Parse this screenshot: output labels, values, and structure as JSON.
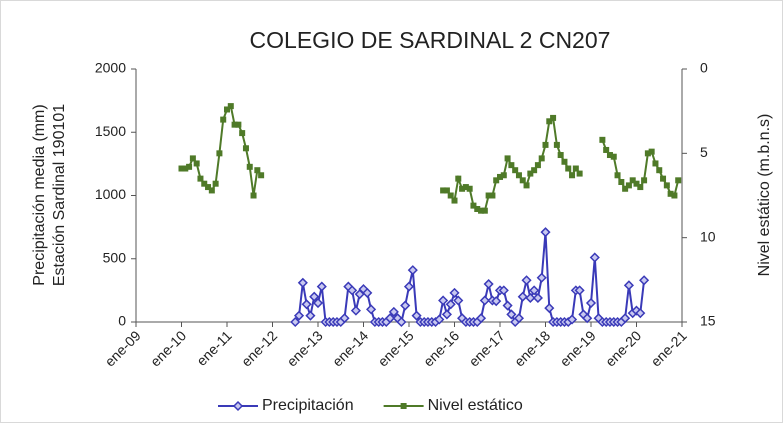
{
  "chart_data": {
    "type": "line",
    "title": "COLEGIO DE SARDINAL 2 CN207",
    "y_label": [
      "Precipitación media (mm)",
      "Estación Sardinal 190101"
    ],
    "y2_label": "Nivel estático (m.b.n.s)",
    "x": [
      "2010-01",
      "2010-02",
      "2010-03",
      "2010-04",
      "2010-05",
      "2010-06",
      "2010-07",
      "2010-08",
      "2010-09",
      "2010-10",
      "2010-11",
      "2010-12",
      "2011-01",
      "2011-02",
      "2011-03",
      "2011-04",
      "2011-05",
      "2011-06",
      "2011-07",
      "2011-08",
      "2011-09",
      "2011-10",
      "2011-11",
      "2011-12",
      "2012-01",
      "2012-02",
      "2012-03",
      "2012-04",
      "2012-05",
      "2012-06",
      "2012-07",
      "2012-08",
      "2012-09",
      "2012-10",
      "2012-11",
      "2012-12",
      "2013-01",
      "2013-02",
      "2013-03",
      "2013-04",
      "2013-05",
      "2013-06",
      "2013-07",
      "2013-08",
      "2013-09",
      "2013-10",
      "2013-11",
      "2013-12",
      "2014-01",
      "2014-02",
      "2014-03",
      "2014-04",
      "2014-05",
      "2014-06",
      "2014-07",
      "2014-08",
      "2014-09",
      "2014-10",
      "2014-11",
      "2014-12",
      "2015-01",
      "2015-02",
      "2015-03",
      "2015-04",
      "2015-05",
      "2015-06",
      "2015-07",
      "2015-08",
      "2015-09",
      "2015-10",
      "2015-11",
      "2015-12",
      "2016-01",
      "2016-02",
      "2016-03",
      "2016-04",
      "2016-05",
      "2016-06",
      "2016-07",
      "2016-08",
      "2016-09",
      "2016-10",
      "2016-11",
      "2016-12",
      "2017-01",
      "2017-02",
      "2017-03",
      "2017-04",
      "2017-05",
      "2017-06",
      "2017-07",
      "2017-08",
      "2017-09",
      "2017-10",
      "2017-11",
      "2017-12",
      "2018-01",
      "2018-02",
      "2018-03",
      "2018-04",
      "2018-05",
      "2018-06",
      "2018-07",
      "2018-08",
      "2018-09",
      "2018-10",
      "2018-11",
      "2018-12",
      "2019-01",
      "2019-02",
      "2019-03",
      "2019-04",
      "2019-05",
      "2019-06",
      "2019-07",
      "2019-08",
      "2019-09",
      "2019-10",
      "2019-11",
      "2019-12",
      "2020-01",
      "2020-02",
      "2020-03",
      "2020-04",
      "2020-05",
      "2020-06",
      "2020-07",
      "2020-08",
      "2020-09",
      "2020-10",
      "2020-11",
      "2020-12"
    ],
    "series": [
      {
        "name": "Precipitación",
        "color": "#3a3ab8",
        "marker": "diamond",
        "axis": "y",
        "values": [
          null,
          null,
          null,
          null,
          null,
          null,
          null,
          null,
          null,
          null,
          null,
          null,
          null,
          null,
          null,
          null,
          null,
          null,
          null,
          null,
          null,
          null,
          null,
          null,
          null,
          null,
          null,
          null,
          null,
          null,
          0,
          50,
          310,
          140,
          50,
          200,
          150,
          280,
          0,
          0,
          0,
          0,
          0,
          30,
          280,
          250,
          90,
          220,
          260,
          230,
          100,
          0,
          0,
          0,
          0,
          30,
          80,
          30,
          0,
          130,
          280,
          410,
          50,
          0,
          0,
          0,
          0,
          0,
          20,
          170,
          60,
          140,
          230,
          170,
          30,
          0,
          0,
          0,
          0,
          30,
          170,
          300,
          170,
          165,
          250,
          250,
          130,
          60,
          0,
          30,
          200,
          330,
          190,
          250,
          190,
          350,
          710,
          110,
          0,
          0,
          0,
          0,
          0,
          20,
          250,
          250,
          60,
          30,
          150,
          510,
          30,
          0,
          0,
          0,
          0,
          0,
          0,
          30,
          290,
          70,
          90,
          70,
          330,
          null,
          null,
          null,
          null,
          null,
          null,
          null,
          null,
          null
        ]
      },
      {
        "name": "Nivel estático",
        "color": "#4f7a28",
        "marker": "square",
        "axis": "y2",
        "values": [
          5.9,
          5.9,
          5.8,
          5.3,
          5.6,
          6.5,
          6.8,
          7.0,
          7.2,
          6.8,
          5.0,
          3.0,
          2.4,
          2.2,
          3.3,
          3.3,
          3.8,
          4.7,
          5.8,
          7.5,
          6.0,
          6.3,
          null,
          null,
          null,
          null,
          null,
          null,
          null,
          null,
          null,
          null,
          null,
          null,
          null,
          null,
          null,
          null,
          null,
          null,
          null,
          null,
          null,
          null,
          null,
          null,
          null,
          null,
          null,
          null,
          null,
          null,
          null,
          null,
          null,
          null,
          null,
          null,
          null,
          null,
          null,
          null,
          null,
          null,
          null,
          null,
          null,
          null,
          null,
          7.2,
          7.2,
          7.5,
          7.8,
          6.5,
          7.1,
          7.0,
          7.1,
          8.1,
          8.3,
          8.4,
          8.4,
          7.5,
          7.5,
          6.6,
          6.4,
          6.3,
          5.3,
          5.7,
          6.0,
          6.3,
          6.6,
          6.9,
          6.2,
          6.0,
          5.7,
          5.3,
          4.5,
          3.1,
          2.9,
          4.5,
          5.1,
          5.5,
          5.9,
          6.3,
          5.9,
          6.2,
          null,
          null,
          null,
          null,
          null,
          4.2,
          4.8,
          5.1,
          5.2,
          6.3,
          6.7,
          7.1,
          6.9,
          6.6,
          6.8,
          7.0,
          6.6,
          5.0,
          4.9,
          5.6,
          6.0,
          6.5,
          6.9,
          7.4,
          7.5,
          6.6
        ]
      }
    ],
    "xlim": [
      "2009-01",
      "2021-01"
    ],
    "xticks": [
      {
        "value": "2009-01",
        "label": "ene-09"
      },
      {
        "value": "2010-01",
        "label": "ene-10"
      },
      {
        "value": "2011-01",
        "label": "ene-11"
      },
      {
        "value": "2012-01",
        "label": "ene-12"
      },
      {
        "value": "2013-01",
        "label": "ene-13"
      },
      {
        "value": "2014-01",
        "label": "ene-14"
      },
      {
        "value": "2015-01",
        "label": "ene-15"
      },
      {
        "value": "2016-01",
        "label": "ene-16"
      },
      {
        "value": "2017-01",
        "label": "ene-17"
      },
      {
        "value": "2018-01",
        "label": "ene-18"
      },
      {
        "value": "2019-01",
        "label": "ene-19"
      },
      {
        "value": "2020-01",
        "label": "ene-20"
      },
      {
        "value": "2021-01",
        "label": "ene-21"
      }
    ],
    "ylim": [
      0,
      2000
    ],
    "yticks": [
      0,
      500,
      1000,
      1500,
      2000
    ],
    "y2lim": [
      15,
      0
    ],
    "y2ticks": [
      0,
      5,
      10,
      15
    ],
    "grid": false,
    "legend": "bottom"
  }
}
